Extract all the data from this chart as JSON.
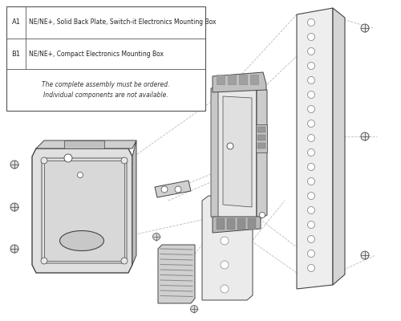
{
  "bg_color": "#ffffff",
  "table": {
    "rows": [
      {
        "id": "A1",
        "desc": "NE/NE+, Solid Back Plate, Switch-it Electronics Mounting Box"
      },
      {
        "id": "B1",
        "desc": "NE/NE+, Compact Electronics Mounting Box"
      }
    ],
    "note": "The complete assembly must be ordered.\nIndividual components are not available."
  },
  "dashed_color": "#bbbbbb",
  "stroke": "#444444",
  "light_fill": "#f0f0f0",
  "mid_fill": "#d8d8d8",
  "dark_fill": "#b0b0b0"
}
